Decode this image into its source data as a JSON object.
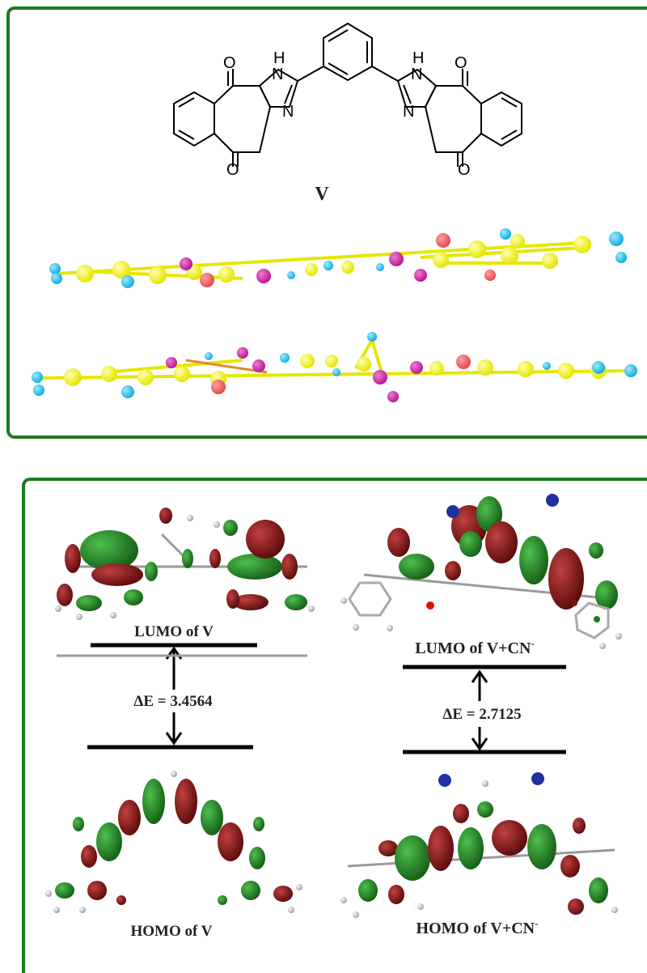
{
  "structure": {
    "compound_label": "V",
    "atoms": {
      "oxygen": "O",
      "nitrogen": "N",
      "nh": "H"
    }
  },
  "orbitals": {
    "left_lumo_label": "LUMO of V",
    "left_homo_label": "HOMO of V",
    "left_gap_label": "ΔE = 3.4564",
    "right_lumo_label_main": "LUMO of V+CN",
    "right_lumo_label_sup": "-",
    "right_homo_label_main": "HOMO of V+CN",
    "right_homo_label_sup": "-",
    "right_gap_label": "ΔE = 2.7125"
  },
  "colors": {
    "frame": "#1d7a1d",
    "carbon_yellow": "#f2f21a",
    "hydrogen_cyan": "#1fc1e6",
    "nitrogen_magenta": "#d02aa8",
    "oxygen_red": "#f26060",
    "orbital_green": "#1e7a1e",
    "orbital_red": "#7a1010"
  }
}
